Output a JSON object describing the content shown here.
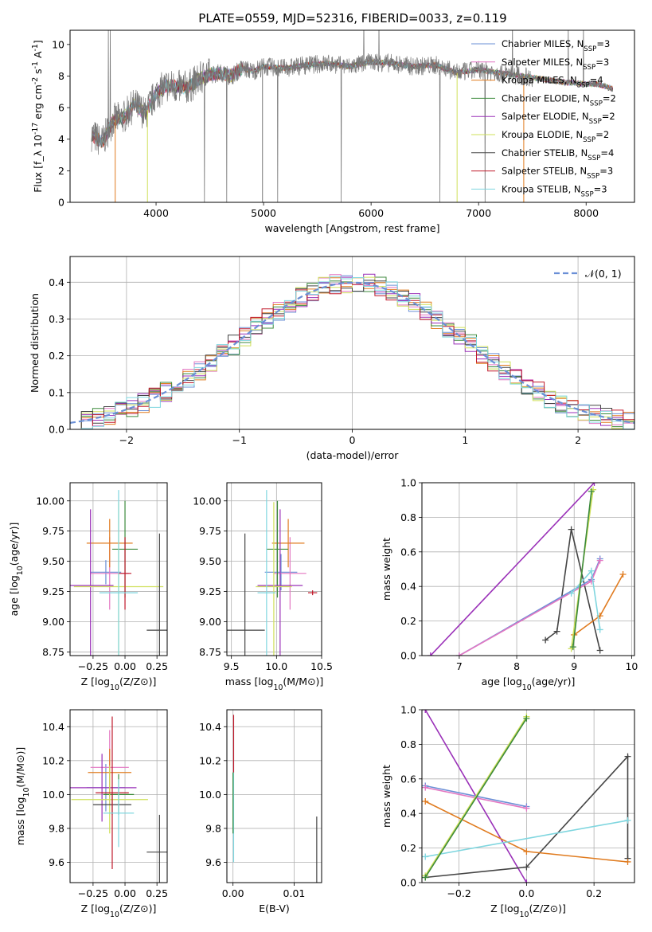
{
  "chart_data": [
    {
      "id": "spectrum",
      "type": "line",
      "title": "PLATE=0559, MJD=52316, FIBERID=0033, z=0.119",
      "xlabel": "wavelength [Angstrom, rest frame]",
      "ylabel": "Flux [f_λ 10^-17 erg cm^-2 s^-1 A^-1]",
      "xlim": [
        3200,
        8450
      ],
      "ylim": [
        0,
        10.9
      ],
      "xticks": [
        4000,
        5000,
        6000,
        7000,
        8000
      ],
      "yticks": [
        0,
        2,
        4,
        6,
        8,
        10
      ],
      "grid": false,
      "legend_position": "top-right",
      "observed_flux_color": "#777777",
      "observed_flux": {
        "x": [
          3400,
          3500,
          3600,
          3700,
          3800,
          3900,
          4000,
          4100,
          4200,
          4300,
          4400,
          4500,
          4600,
          4700,
          4800,
          4900,
          5000,
          5200,
          5400,
          5600,
          5800,
          6000,
          6200,
          6400,
          6600,
          6800,
          7000,
          7200,
          7400,
          7600,
          7800,
          8000,
          8100,
          8200,
          8250
        ],
        "y": [
          4.3,
          3.8,
          5.2,
          5.4,
          6.2,
          5.6,
          6.9,
          7.4,
          7.3,
          7.3,
          7.8,
          8.1,
          8.2,
          8.0,
          8.5,
          8.3,
          8.6,
          8.5,
          8.7,
          8.8,
          8.6,
          8.9,
          8.8,
          8.6,
          8.7,
          8.2,
          8.4,
          8.2,
          8.0,
          7.8,
          7.6,
          7.5,
          7.5,
          7.3,
          7.2
        ]
      },
      "series": [
        {
          "name": "Chabrier MILES, N_SSP=3",
          "color": "#6a8fd6"
        },
        {
          "name": "Salpeter MILES, N_SSP=3",
          "color": "#e377c2"
        },
        {
          "name": "Kroupa MILES, N_SSP=4",
          "color": "#e07b1f"
        },
        {
          "name": "Chabrier ELODIE, N_SSP=2",
          "color": "#3c8a3c"
        },
        {
          "name": "Salpeter ELODIE, N_SSP=2",
          "color": "#9a30b8"
        },
        {
          "name": "Kroupa ELODIE, N_SSP=2",
          "color": "#cfe05a"
        },
        {
          "name": "Chabrier STELIB, N_SSP=4",
          "color": "#444444"
        },
        {
          "name": "Salpeter STELIB, N_SSP=3",
          "color": "#c0182a"
        },
        {
          "name": "Kroupa STELIB, N_SSP=3",
          "color": "#7fd6df"
        }
      ]
    },
    {
      "id": "residuals",
      "type": "area",
      "xlabel": "(data-model)/error",
      "ylabel": "Normed distribution",
      "xlim": [
        -2.5,
        2.5
      ],
      "ylim": [
        0,
        0.47
      ],
      "xticks": [
        -2,
        -1,
        0,
        1,
        2
      ],
      "yticks": [
        0.0,
        0.1,
        0.2,
        0.3,
        0.4
      ],
      "grid": true,
      "legend_position": "top-right",
      "reference_curve": {
        "name": "𝒩(0, 1)",
        "color": "#6a8fd6",
        "dash": true
      },
      "bin_width": 0.1
    },
    {
      "id": "age-vs-Z",
      "type": "scatter",
      "xlabel": "Z [log10(Z/Z⊙)]",
      "ylabel": "age [log10(age/yr)]",
      "xlim": [
        -0.43,
        0.33
      ],
      "ylim": [
        8.72,
        10.15
      ],
      "xticks": [
        -0.25,
        0.0,
        0.25
      ],
      "xtick_labels": [
        "−0.25",
        "0.00",
        "0.25"
      ],
      "yticks": [
        8.75,
        9.0,
        9.25,
        9.5,
        9.75,
        10.0
      ],
      "ytick_labels": [
        "8.75",
        "9.00",
        "9.25",
        "9.50",
        "9.75",
        "10.00"
      ],
      "grid": true,
      "points": [
        {
          "x": -0.15,
          "xerr": 0.12,
          "y": 9.41,
          "yerr": 0.1,
          "color": "#6a8fd6"
        },
        {
          "x": -0.12,
          "xerr": 0.15,
          "y": 9.4,
          "yerr": 0.3,
          "color": "#e377c2"
        },
        {
          "x": -0.12,
          "xerr": 0.18,
          "y": 9.65,
          "yerr": 0.2,
          "color": "#e07b1f"
        },
        {
          "x": 0.0,
          "xerr": 0.1,
          "y": 9.6,
          "yerr": 0.4,
          "color": "#3c8a3c"
        },
        {
          "x": -0.27,
          "xerr": 0.18,
          "y": 9.3,
          "yerr": 0.63,
          "color": "#9a30b8"
        },
        {
          "x": -0.05,
          "xerr": 0.35,
          "y": 9.29,
          "yerr": 0.7,
          "color": "#cfe05a"
        },
        {
          "x": 0.27,
          "xerr": 0.1,
          "y": 8.93,
          "yerr": 0.8,
          "color": "#444444"
        },
        {
          "x": 0.0,
          "xerr": 0.05,
          "y": 9.4,
          "yerr": 0.3,
          "color": "#c0182a"
        },
        {
          "x": -0.05,
          "xerr": 0.15,
          "y": 9.24,
          "yerr": 0.85,
          "color": "#7fd6df"
        }
      ]
    },
    {
      "id": "age-vs-mass",
      "type": "scatter",
      "xlabel": "mass [log10(M/M⊙)]",
      "ylabel": "",
      "xlim": [
        9.45,
        10.5
      ],
      "ylim": [
        8.72,
        10.15
      ],
      "xticks": [
        9.5,
        10.0,
        10.5
      ],
      "xtick_labels": [
        "9.5",
        "10.0",
        "10.5"
      ],
      "yticks": [
        8.75,
        9.0,
        9.25,
        9.5,
        9.75,
        10.0
      ],
      "ytick_labels": [
        "8.75",
        "9.00",
        "9.25",
        "9.50",
        "9.75",
        "10.00"
      ],
      "grid": true,
      "points": [
        {
          "x": 10.05,
          "xerr": 0.18,
          "y": 9.41,
          "yerr": 0.15,
          "color": "#6a8fd6"
        },
        {
          "x": 10.15,
          "xerr": 0.18,
          "y": 9.4,
          "yerr": 0.3,
          "color": "#e377c2"
        },
        {
          "x": 10.13,
          "xerr": 0.18,
          "y": 9.65,
          "yerr": 0.2,
          "color": "#e07b1f"
        },
        {
          "x": 10.01,
          "xerr": 0.12,
          "y": 9.6,
          "yerr": 0.4,
          "color": "#3c8a3c"
        },
        {
          "x": 10.04,
          "xerr": 0.25,
          "y": 9.3,
          "yerr": 0.63,
          "color": "#9a30b8"
        },
        {
          "x": 9.97,
          "xerr": 0.2,
          "y": 9.29,
          "yerr": 0.7,
          "color": "#cfe05a"
        },
        {
          "x": 9.65,
          "xerr": 0.22,
          "y": 8.93,
          "yerr": 0.8,
          "color": "#444444"
        },
        {
          "x": 10.4,
          "xerr": 0.05,
          "y": 9.24,
          "yerr": 0.02,
          "color": "#c0182a"
        },
        {
          "x": 9.89,
          "xerr": 0.1,
          "y": 9.24,
          "yerr": 0.85,
          "color": "#7fd6df"
        }
      ]
    },
    {
      "id": "weight-vs-age",
      "type": "line",
      "xlabel": "age [log10(age/yr)]",
      "ylabel": "mass weight",
      "xlim": [
        6.35,
        10.05
      ],
      "ylim": [
        0.0,
        1.0
      ],
      "xticks": [
        7,
        8,
        9,
        10
      ],
      "yticks": [
        0.0,
        0.2,
        0.4,
        0.6,
        0.8,
        1.0
      ],
      "grid": true,
      "series": [
        {
          "color": "#9a30b8",
          "x": [
            6.5,
            9.35
          ],
          "y": [
            0.0,
            1.0
          ]
        },
        {
          "color": "#444444",
          "x": [
            8.5,
            8.7,
            8.95,
            9.45
          ],
          "y": [
            0.09,
            0.14,
            0.73,
            0.03
          ]
        },
        {
          "color": "#e07b1f",
          "x": [
            9.0,
            9.45,
            9.85
          ],
          "y": [
            0.12,
            0.23,
            0.47
          ]
        },
        {
          "color": "#6a8fd6",
          "x": [
            7.0,
            9.3,
            9.45
          ],
          "y": [
            0.0,
            0.44,
            0.56
          ]
        },
        {
          "color": "#e377c2",
          "x": [
            7.0,
            9.3,
            9.45
          ],
          "y": [
            0.0,
            0.43,
            0.55
          ]
        },
        {
          "color": "#7fd6df",
          "x": [
            8.95,
            9.3,
            9.45
          ],
          "y": [
            0.36,
            0.49,
            0.15
          ]
        },
        {
          "color": "#cfe05a",
          "x": [
            8.95,
            9.33
          ],
          "y": [
            0.04,
            0.96
          ]
        },
        {
          "color": "#3c8a3c",
          "x": [
            8.98,
            9.3
          ],
          "y": [
            0.05,
            0.95
          ]
        }
      ]
    },
    {
      "id": "mass-vs-Z",
      "type": "scatter",
      "xlabel": "Z [log10(Z/Z⊙)]",
      "ylabel": "mass [log10(M/M⊙)]",
      "xlim": [
        -0.43,
        0.33
      ],
      "ylim": [
        9.48,
        10.5
      ],
      "xticks": [
        -0.25,
        0.0,
        0.25
      ],
      "xtick_labels": [
        "−0.25",
        "0.00",
        "0.25"
      ],
      "yticks": [
        9.6,
        9.8,
        10.0,
        10.2,
        10.4
      ],
      "ytick_labels": [
        "9.6",
        "9.8",
        "10.0",
        "10.2",
        "10.4"
      ],
      "grid": true,
      "points": [
        {
          "x": -0.15,
          "xerr": 0.15,
          "y": 10.04,
          "yerr": 0.14,
          "color": "#6a8fd6"
        },
        {
          "x": -0.12,
          "xerr": 0.15,
          "y": 10.16,
          "yerr": 0.22,
          "color": "#e377c2"
        },
        {
          "x": -0.12,
          "xerr": 0.17,
          "y": 10.13,
          "yerr": 0.14,
          "color": "#e07b1f"
        },
        {
          "x": -0.05,
          "xerr": 0.12,
          "y": 10.0,
          "yerr": 0.12,
          "color": "#3c8a3c"
        },
        {
          "x": -0.18,
          "xerr": 0.27,
          "y": 10.04,
          "yerr": 0.2,
          "color": "#9a30b8"
        },
        {
          "x": -0.12,
          "xerr": 0.3,
          "y": 9.97,
          "yerr": 0.2,
          "color": "#cfe05a"
        },
        {
          "x": -0.1,
          "xerr": 0.15,
          "y": 9.94,
          "yerr": 0.06,
          "color": "#444444"
        },
        {
          "x": -0.1,
          "xerr": 0.13,
          "y": 10.01,
          "yerr": 0.45,
          "color": "#c0182a"
        },
        {
          "x": -0.05,
          "xerr": 0.12,
          "y": 9.89,
          "yerr": 0.2,
          "color": "#7fd6df"
        },
        {
          "x": 0.27,
          "xerr": 0.1,
          "y": 9.66,
          "yerr": 0.22,
          "color": "#444444"
        }
      ]
    },
    {
      "id": "mass-vs-ebv",
      "type": "scatter",
      "xlabel": "E(B-V)",
      "ylabel": "",
      "xlim": [
        -0.001,
        0.0145
      ],
      "ylim": [
        9.48,
        10.5
      ],
      "xticks": [
        0.0,
        0.01
      ],
      "xtick_labels": [
        "0.00",
        "0.01"
      ],
      "yticks": [
        9.6,
        9.8,
        10.0,
        10.2,
        10.4
      ],
      "ytick_labels": [
        "9.6",
        "9.8",
        "10.0",
        "10.2",
        "10.4"
      ],
      "grid": true,
      "points": [
        {
          "x": 0.0001,
          "xerr": 0.0,
          "y": 10.0,
          "yerr": 0.4,
          "color": "#7fd6df"
        },
        {
          "x": 0.0001,
          "xerr": 0.0,
          "y": 10.3,
          "yerr": 0.17,
          "color": "#c0182a"
        },
        {
          "x": 0.0,
          "xerr": 0.0,
          "y": 9.95,
          "yerr": 0.18,
          "color": "#3c8a3c"
        },
        {
          "x": 0.0137,
          "xerr": 0.0,
          "y": 9.63,
          "yerr": 0.24,
          "color": "#444444"
        }
      ]
    },
    {
      "id": "weight-vs-Z",
      "type": "line",
      "xlabel": "Z [log10(Z/Z⊙)]",
      "ylabel": "mass weight",
      "xlim": [
        -0.31,
        0.32
      ],
      "ylim": [
        0.0,
        1.0
      ],
      "xticks": [
        -0.2,
        0.0,
        0.2
      ],
      "xtick_labels": [
        "−0.2",
        "0.0",
        "0.2"
      ],
      "yticks": [
        0.0,
        0.2,
        0.4,
        0.6,
        0.8,
        1.0
      ],
      "grid": true,
      "series": [
        {
          "color": "#9a30b8",
          "x": [
            -0.3,
            0.0
          ],
          "y": [
            1.0,
            0.0
          ]
        },
        {
          "color": "#444444",
          "x": [
            -0.3,
            0.0,
            0.3,
            0.3
          ],
          "y": [
            0.03,
            0.09,
            0.73,
            0.14
          ]
        },
        {
          "color": "#e07b1f",
          "x": [
            -0.3,
            0.0,
            0.3
          ],
          "y": [
            0.47,
            0.18,
            0.12
          ]
        },
        {
          "color": "#6a8fd6",
          "x": [
            -0.3,
            0.0
          ],
          "y": [
            0.56,
            0.44
          ]
        },
        {
          "color": "#e377c2",
          "x": [
            -0.3,
            0.0
          ],
          "y": [
            0.55,
            0.43
          ]
        },
        {
          "color": "#7fd6df",
          "x": [
            -0.3,
            0.3
          ],
          "y": [
            0.15,
            0.36
          ]
        },
        {
          "color": "#cfe05a",
          "x": [
            -0.3,
            0.0
          ],
          "y": [
            0.04,
            0.96
          ]
        },
        {
          "color": "#3c8a3c",
          "x": [
            -0.3,
            0.0
          ],
          "y": [
            0.03,
            0.95
          ]
        }
      ]
    }
  ]
}
